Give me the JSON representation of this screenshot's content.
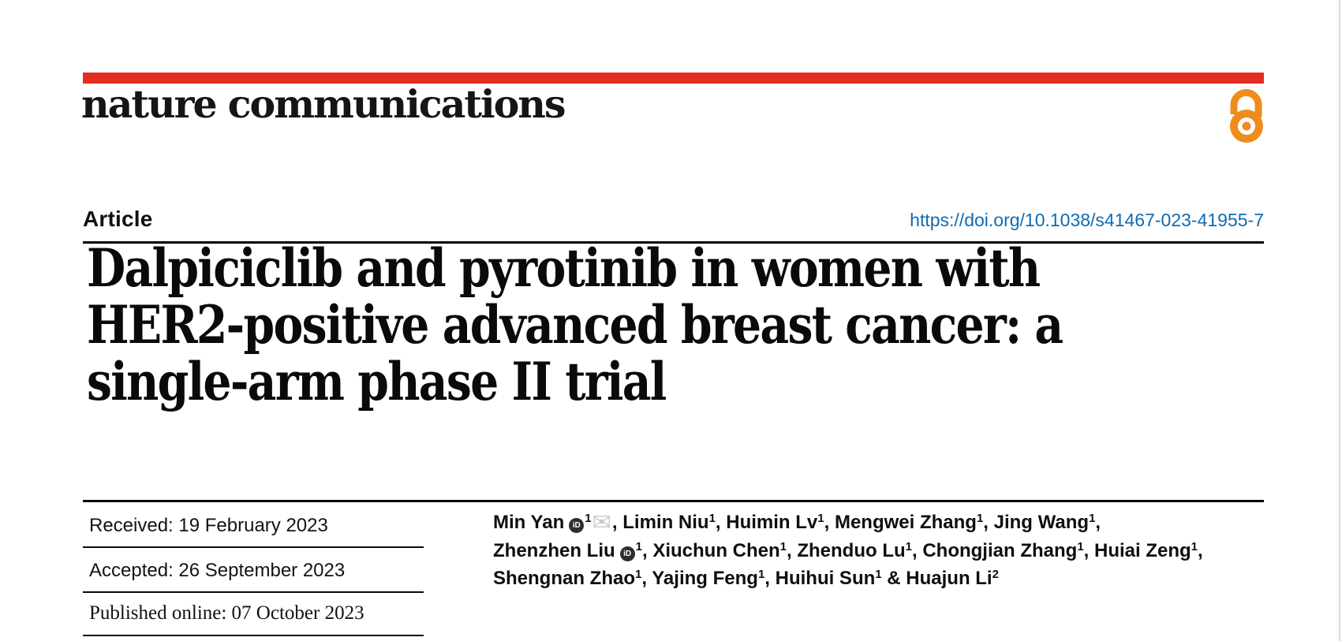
{
  "journal": {
    "logo_text": "nature communications"
  },
  "header": {
    "article_type": "Article",
    "doi": "https://doi.org/10.1038/s41467-023-41955-7"
  },
  "title_lines": [
    "Dalpiciclib and pyrotinib in women with",
    "HER2-positive advanced breast cancer: a",
    "single-arm phase II trial"
  ],
  "dates": {
    "received": "Received: 19 February 2023",
    "accepted": "Accepted: 26 September 2023",
    "published": "Published online: 07 October 2023"
  },
  "authors": {
    "lines": [
      [
        {
          "text": "Min Yan"
        },
        {
          "icon": "orcid"
        },
        {
          "sup": "1"
        },
        {
          "icon": "envelope"
        },
        {
          "text": ", Limin Niu"
        },
        {
          "sup": "1"
        },
        {
          "text": ", Huimin Lv"
        },
        {
          "sup": "1"
        },
        {
          "text": ", Mengwei Zhang"
        },
        {
          "sup": "1"
        },
        {
          "text": ", Jing Wang"
        },
        {
          "sup": "1"
        },
        {
          "text": ","
        }
      ],
      [
        {
          "text": "Zhenzhen Liu"
        },
        {
          "icon": "orcid"
        },
        {
          "sup": "1"
        },
        {
          "text": ", Xiuchun Chen"
        },
        {
          "sup": "1"
        },
        {
          "text": ", Zhenduo Lu"
        },
        {
          "sup": "1"
        },
        {
          "text": ", Chongjian Zhang"
        },
        {
          "sup": "1"
        },
        {
          "text": ", Huiai Zeng"
        },
        {
          "sup": "1"
        },
        {
          "text": ","
        }
      ],
      [
        {
          "text": "Shengnan Zhao"
        },
        {
          "sup": "1"
        },
        {
          "text": ", Yajing Feng"
        },
        {
          "sup": "1"
        },
        {
          "text": ", Huihui Sun"
        },
        {
          "sup": "1"
        },
        {
          "text": " & Huajun Li"
        },
        {
          "sup": "2"
        }
      ]
    ]
  },
  "icons": {
    "orcid_label": "iD",
    "envelope_glyph": "✉",
    "open_access_name": "open-access"
  },
  "colors": {
    "brand_red": "#e32d22",
    "open_access_orange": "#ef8c1e",
    "link_blue": "#0f6bb2",
    "text_black": "#0d0d0d",
    "page_edge_gray": "#dadada"
  }
}
